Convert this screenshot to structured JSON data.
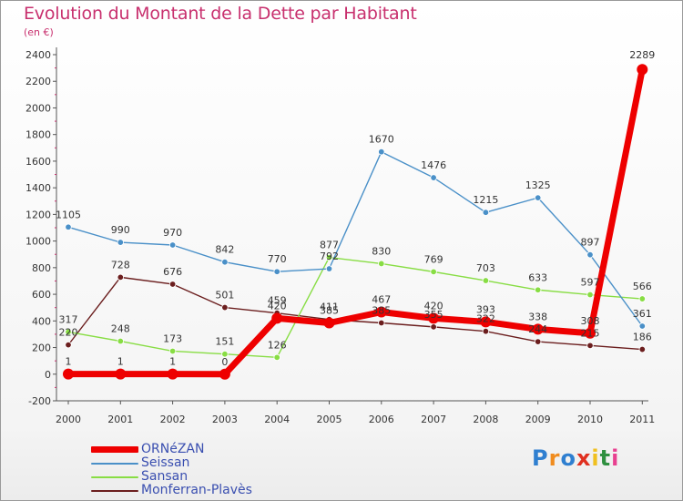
{
  "chart_data": {
    "type": "line",
    "title": "Evolution du Montant de la Dette par Habitant",
    "unit": "(en €)",
    "xlabel": "",
    "ylabel": "",
    "categories": [
      "2000",
      "2001",
      "2002",
      "2003",
      "2004",
      "2005",
      "2006",
      "2007",
      "2008",
      "2009",
      "2010",
      "2011"
    ],
    "ylim": [
      -200,
      2400
    ],
    "yticks": [
      -200,
      0,
      200,
      400,
      600,
      800,
      1000,
      1200,
      1400,
      1600,
      1800,
      2000,
      2200,
      2400
    ],
    "grid": false,
    "legend_position": "bottom-left",
    "series": [
      {
        "name": "ORNéZAN",
        "color": "#ee0000",
        "values": [
          1,
          1,
          1,
          0,
          420,
          385,
          467,
          420,
          393,
          338,
          308,
          2289
        ]
      },
      {
        "name": "Seissan",
        "color": "#4a90c8",
        "values": [
          1105,
          990,
          970,
          842,
          770,
          792,
          1670,
          1476,
          1215,
          1325,
          897,
          361
        ]
      },
      {
        "name": "Sansan",
        "color": "#88dd44",
        "values": [
          317,
          248,
          173,
          151,
          126,
          877,
          830,
          769,
          703,
          633,
          597,
          566
        ]
      },
      {
        "name": "Monferran-Plavès",
        "color": "#6b1e1e",
        "values": [
          220,
          728,
          676,
          501,
          459,
          411,
          385,
          355,
          322,
          244,
          215,
          186
        ]
      }
    ]
  },
  "logo": {
    "text": "Proxiti",
    "colors": [
      "#2f7fd0",
      "#f08c1e",
      "#2f7fd0",
      "#e03020",
      "#f0c020",
      "#2f9040",
      "#e84090"
    ]
  }
}
